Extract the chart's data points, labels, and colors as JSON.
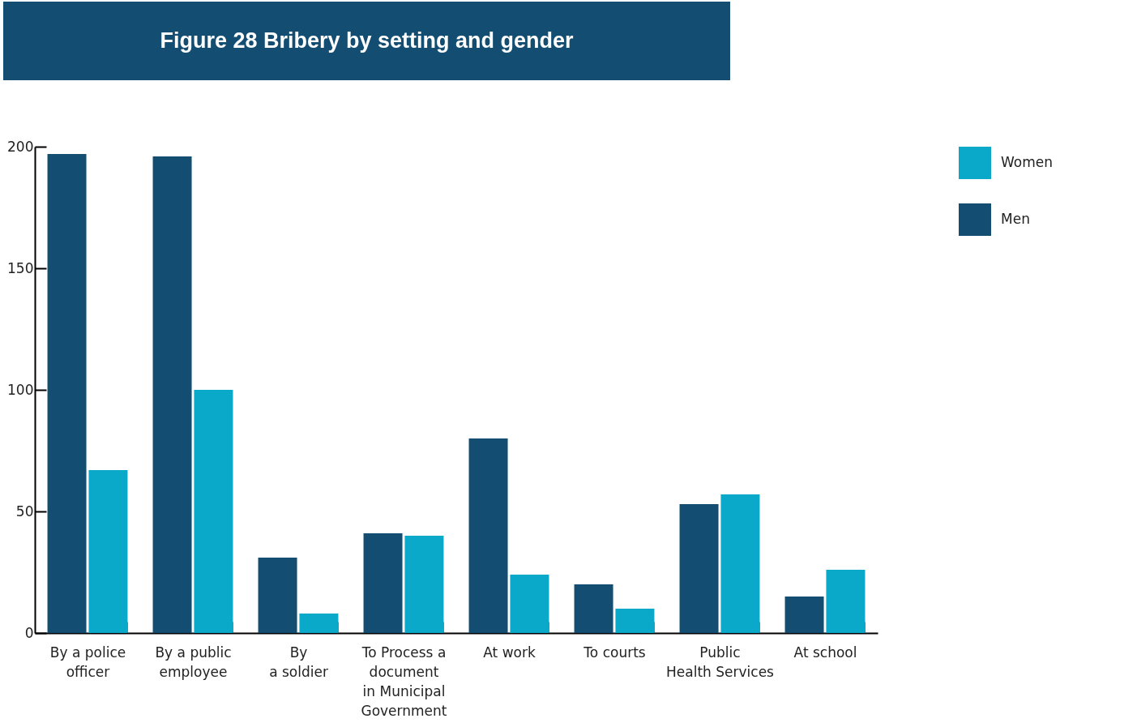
{
  "chart_data": {
    "type": "bar",
    "title": "Figure 28 Bribery by setting and gender",
    "categories": [
      "By a police\nofficer",
      "By a public\nemployee",
      "By\na soldier",
      "To Process a\ndocument\nin Municipal\nGovernment",
      "At work",
      "To courts",
      "Public\nHealth Services",
      "At school"
    ],
    "series": [
      {
        "name": "Men",
        "color": "#134d72",
        "values": [
          197,
          196,
          31,
          41,
          80,
          20,
          53,
          15
        ]
      },
      {
        "name": "Women",
        "color": "#0aa9c9",
        "values": [
          67,
          100,
          8,
          40,
          24,
          10,
          57,
          26
        ]
      }
    ],
    "ylim": [
      0,
      200
    ],
    "yticks": [
      0,
      50,
      100,
      150,
      200
    ],
    "grid": false,
    "legend": "top right"
  }
}
